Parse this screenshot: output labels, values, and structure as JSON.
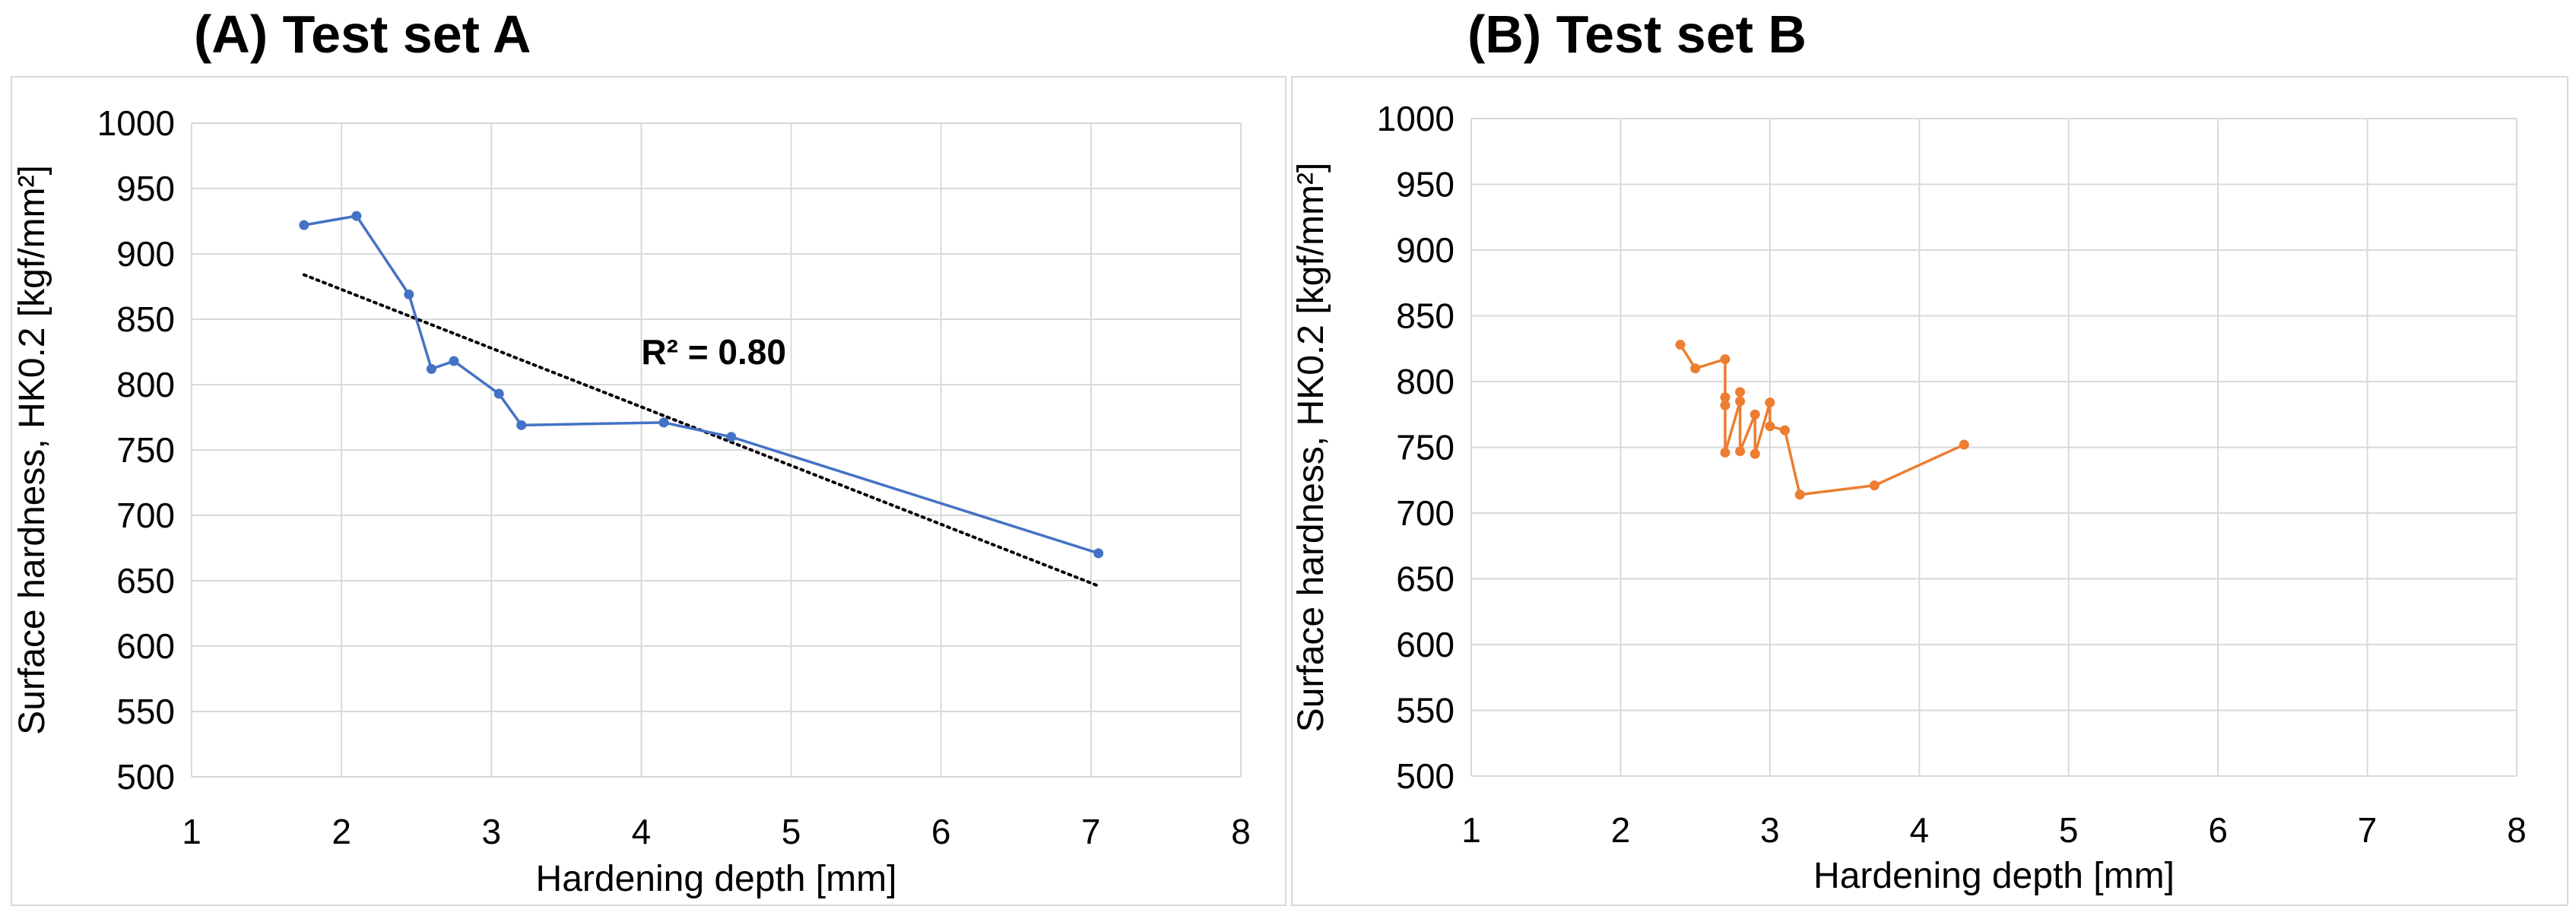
{
  "chart_data": [
    {
      "type": "line",
      "title": "(A) Test set A",
      "xlabel": "Hardening depth [mm]",
      "ylabel": "Surface hardness, HK0.2 [kgf/mm²]",
      "xlim": [
        1,
        8
      ],
      "ylim": [
        500,
        1000
      ],
      "xticks": [
        1,
        2,
        3,
        4,
        5,
        6,
        7,
        8
      ],
      "yticks": [
        500,
        550,
        600,
        650,
        700,
        750,
        800,
        850,
        900,
        950,
        1000
      ],
      "grid": true,
      "color": "#4472C4",
      "series": [
        {
          "name": "Test set A",
          "x": [
            1.75,
            2.1,
            2.45,
            2.6,
            2.75,
            3.05,
            3.2,
            4.15,
            4.6,
            7.05
          ],
          "y": [
            922,
            929,
            869,
            812,
            818,
            793,
            769,
            771,
            760,
            671
          ]
        }
      ],
      "trendline": {
        "type": "linear",
        "style": "dotted",
        "color": "#000000",
        "x": [
          1.75,
          7.05
        ],
        "y": [
          884,
          646
        ],
        "label": "R² = 0.80",
        "label_x": 4.0,
        "label_y": 825
      }
    },
    {
      "type": "line",
      "title": "(B) Test set B",
      "xlabel": "Hardening depth [mm]",
      "ylabel": "Surface hardness, HK0.2 [kgf/mm²]",
      "xlim": [
        1,
        8
      ],
      "ylim": [
        500,
        1000
      ],
      "xticks": [
        1,
        2,
        3,
        4,
        5,
        6,
        7,
        8
      ],
      "yticks": [
        500,
        550,
        600,
        650,
        700,
        750,
        800,
        850,
        900,
        950,
        1000
      ],
      "grid": true,
      "color": "#ED7D31",
      "series": [
        {
          "name": "Test set B",
          "x": [
            2.4,
            2.5,
            2.7,
            2.7,
            2.7,
            2.7,
            2.8,
            2.8,
            2.8,
            2.9,
            2.9,
            3.0,
            3.0,
            3.1,
            3.2,
            3.7,
            4.3
          ],
          "y": [
            828,
            810,
            817,
            788,
            782,
            746,
            785,
            792,
            747,
            775,
            745,
            784,
            766,
            763,
            714,
            721,
            752
          ]
        }
      ]
    }
  ]
}
